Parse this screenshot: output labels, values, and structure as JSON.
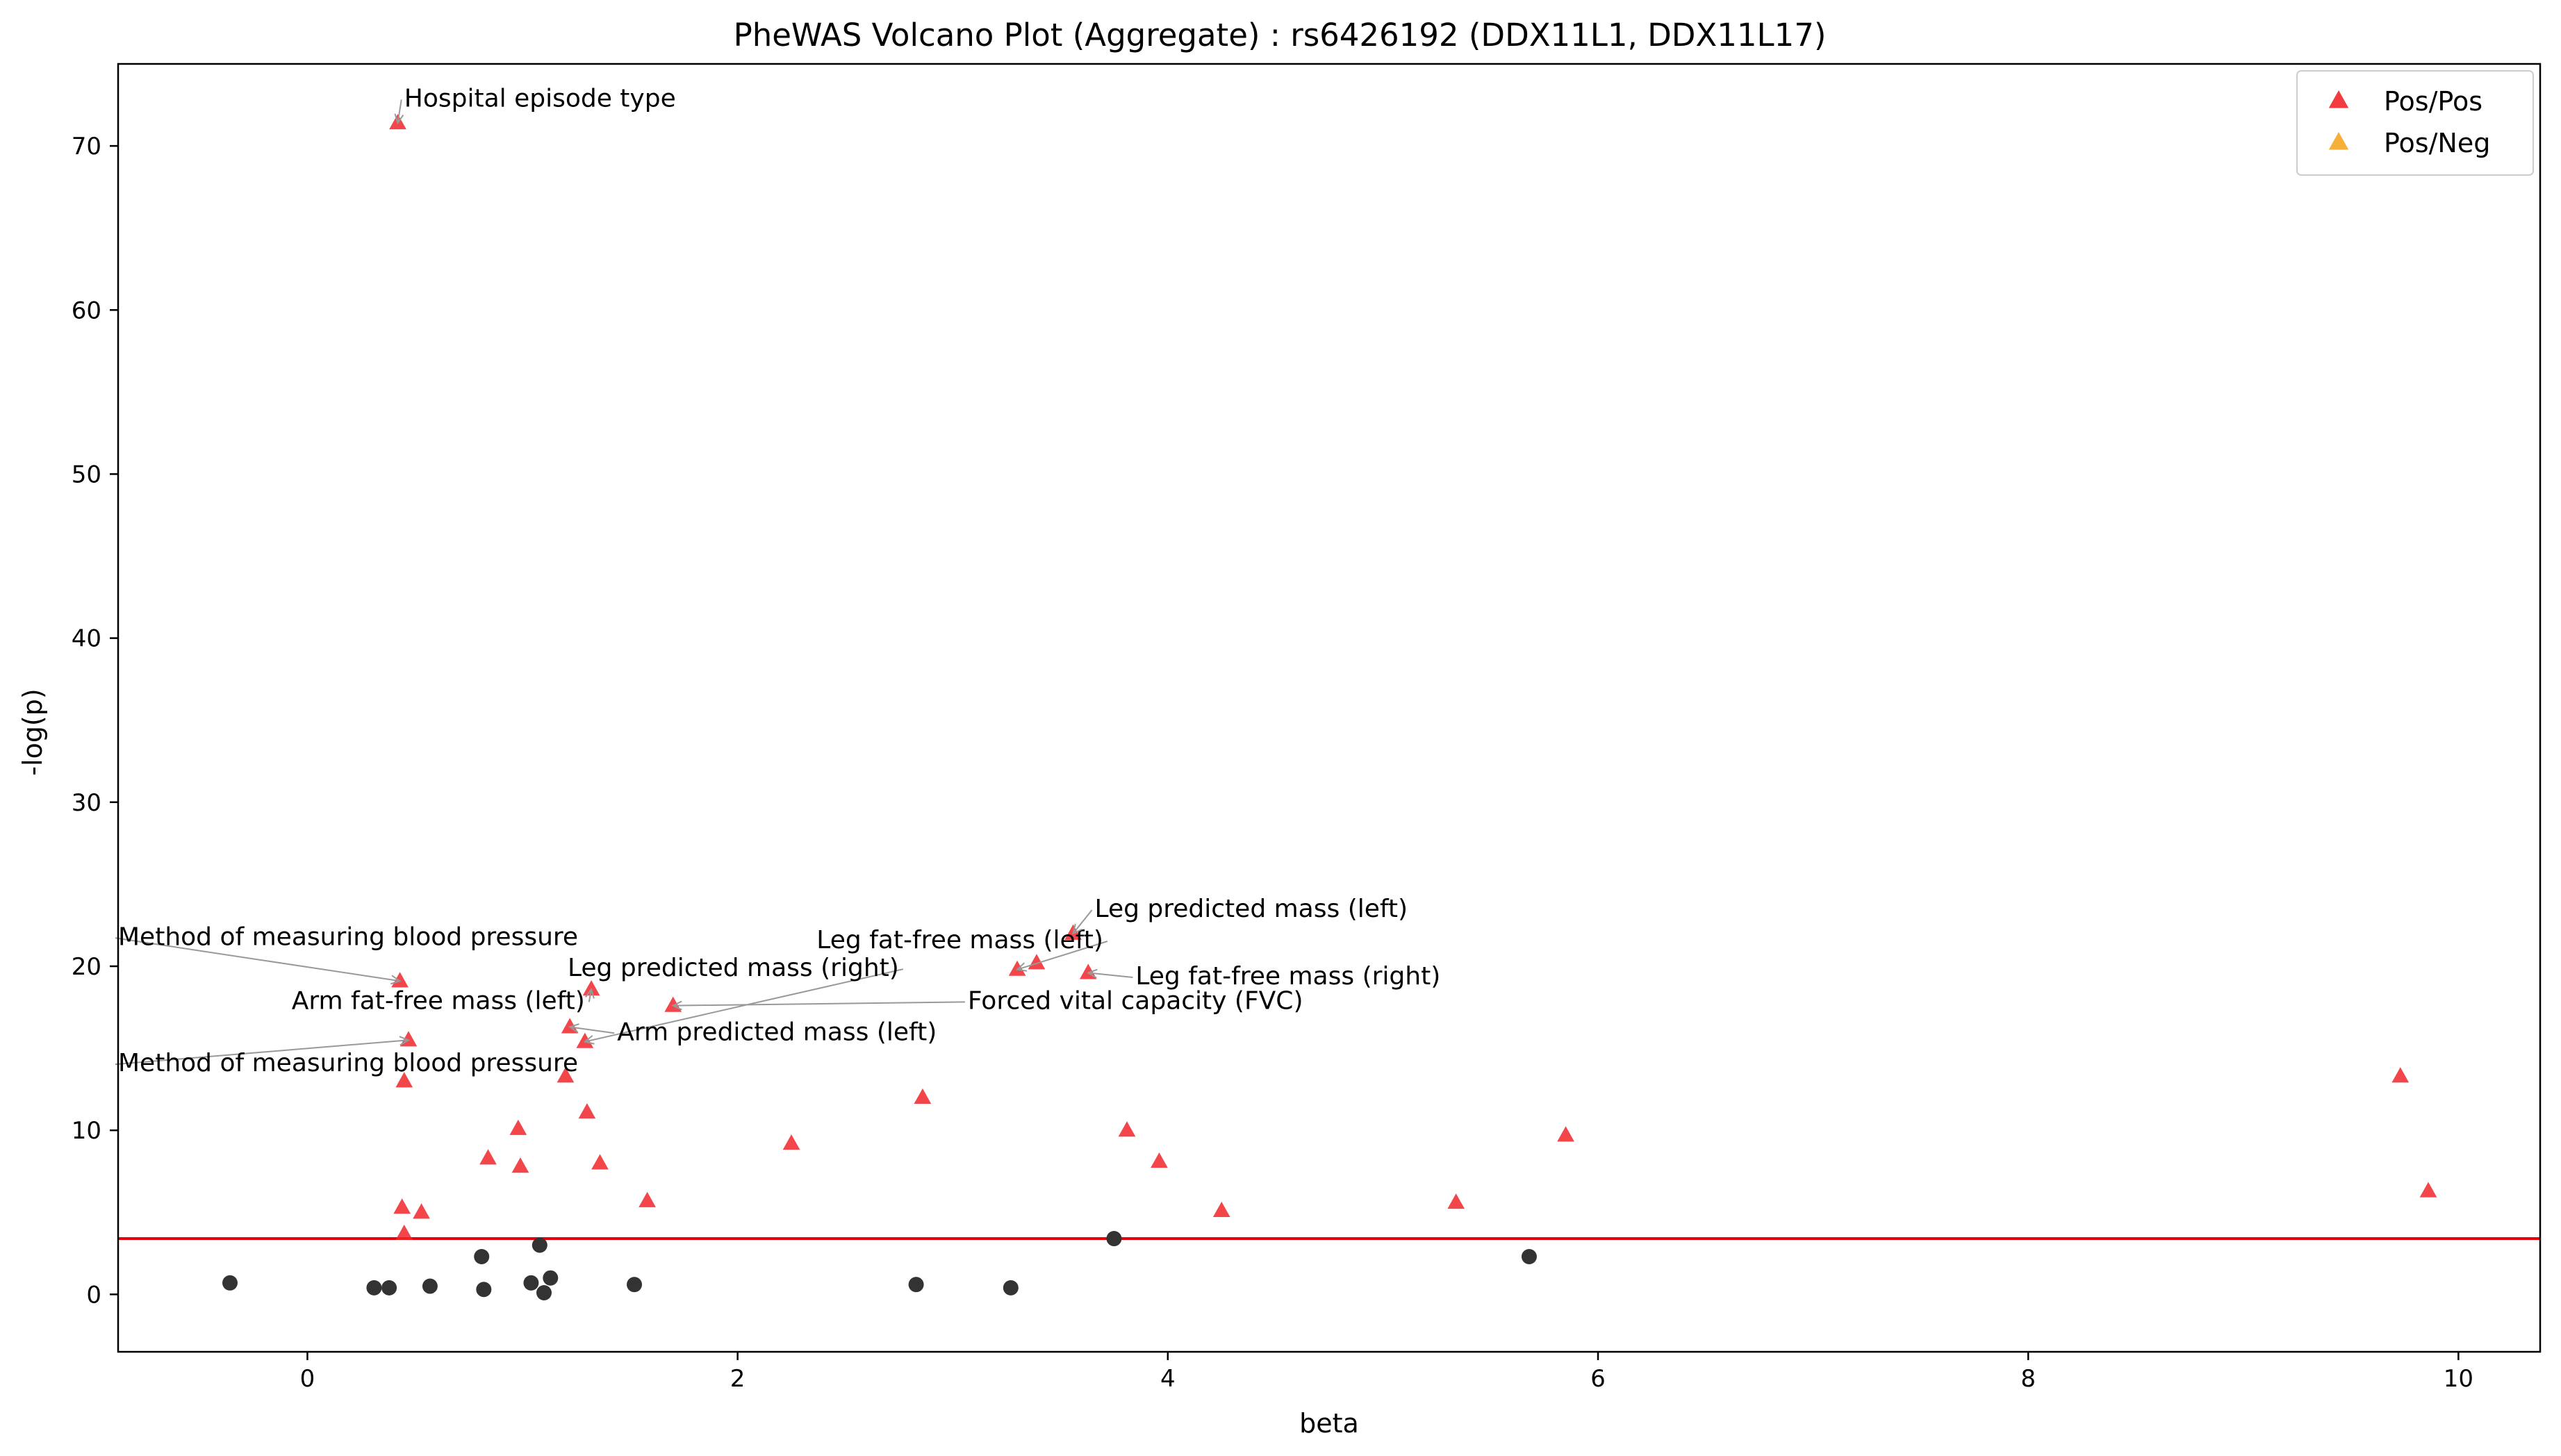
{
  "chart_data": {
    "type": "scatter",
    "title": "PheWAS Volcano Plot (Aggregate) : rs6426192 (DDX11L1, DDX11L17)",
    "xlabel": "beta",
    "ylabel": "-log(p)",
    "xlim": [
      -0.88,
      10.38
    ],
    "ylim": [
      -3.5,
      75.0
    ],
    "xticks": [
      0,
      2,
      4,
      6,
      8,
      10
    ],
    "yticks": [
      0,
      10,
      20,
      30,
      40,
      50,
      60,
      70
    ],
    "grid": false,
    "legend_position": "top-right",
    "threshold_line": {
      "y": 3.4,
      "color": "#e8000b"
    },
    "series": [
      {
        "name": "Pos/Pos",
        "marker": "triangle",
        "color": "#f0262a",
        "points": [
          {
            "x": 0.42,
            "y": 71.4
          },
          {
            "x": 0.43,
            "y": 19.1
          },
          {
            "x": 0.47,
            "y": 15.5
          },
          {
            "x": 0.45,
            "y": 13.0
          },
          {
            "x": 0.44,
            "y": 5.3
          },
          {
            "x": 0.45,
            "y": 3.7
          },
          {
            "x": 0.53,
            "y": 5.0
          },
          {
            "x": 0.84,
            "y": 8.3
          },
          {
            "x": 0.98,
            "y": 10.1
          },
          {
            "x": 0.99,
            "y": 7.8
          },
          {
            "x": 1.2,
            "y": 13.3
          },
          {
            "x": 1.22,
            "y": 16.3
          },
          {
            "x": 1.29,
            "y": 15.4
          },
          {
            "x": 1.3,
            "y": 11.1
          },
          {
            "x": 1.32,
            "y": 18.6
          },
          {
            "x": 1.36,
            "y": 8.0
          },
          {
            "x": 1.58,
            "y": 5.7
          },
          {
            "x": 1.7,
            "y": 17.6
          },
          {
            "x": 2.25,
            "y": 9.2
          },
          {
            "x": 2.86,
            "y": 12.0
          },
          {
            "x": 3.3,
            "y": 19.8
          },
          {
            "x": 3.39,
            "y": 20.2
          },
          {
            "x": 3.56,
            "y": 22.0
          },
          {
            "x": 3.63,
            "y": 19.6
          },
          {
            "x": 3.81,
            "y": 10.0
          },
          {
            "x": 3.96,
            "y": 8.1
          },
          {
            "x": 4.25,
            "y": 5.1
          },
          {
            "x": 5.34,
            "y": 5.6
          },
          {
            "x": 5.85,
            "y": 9.7
          },
          {
            "x": 9.73,
            "y": 13.3
          },
          {
            "x": 9.86,
            "y": 6.3
          }
        ]
      },
      {
        "name": "Pos/Neg",
        "marker": "triangle",
        "color": "#f5a623",
        "points": []
      },
      {
        "marker": "circle",
        "color": "#333333",
        "points": [
          {
            "x": -0.36,
            "y": 0.7
          },
          {
            "x": 0.31,
            "y": 0.4
          },
          {
            "x": 0.38,
            "y": 0.4
          },
          {
            "x": 0.57,
            "y": 0.5
          },
          {
            "x": 0.81,
            "y": 2.3
          },
          {
            "x": 0.82,
            "y": 0.3
          },
          {
            "x": 1.04,
            "y": 0.7
          },
          {
            "x": 1.08,
            "y": 3.0
          },
          {
            "x": 1.1,
            "y": 0.1
          },
          {
            "x": 1.13,
            "y": 1.0
          },
          {
            "x": 1.52,
            "y": 0.6
          },
          {
            "x": 2.83,
            "y": 0.6
          },
          {
            "x": 3.27,
            "y": 0.4
          },
          {
            "x": 3.75,
            "y": 3.4
          },
          {
            "x": 5.68,
            "y": 2.3
          }
        ]
      }
    ],
    "annotations": [
      {
        "text": "Hospital episode type",
        "point": [
          0.42,
          71.4
        ],
        "text_at": [
          0.45,
          72.4
        ],
        "align": "start"
      },
      {
        "text": "Method of measuring blood pressure",
        "point": [
          0.43,
          19.1
        ],
        "text_at": [
          -0.88,
          21.3
        ],
        "align": "start"
      },
      {
        "text": "Arm fat-free mass (left)",
        "point": [
          1.32,
          18.6
        ],
        "text_at": [
          1.29,
          17.4
        ],
        "align": "end"
      },
      {
        "text": "Method of measuring blood pressure",
        "point": [
          0.47,
          15.5
        ],
        "text_at": [
          -0.88,
          13.6
        ],
        "align": "start"
      },
      {
        "text": "Leg predicted mass (right)",
        "point": [
          1.29,
          15.4
        ],
        "text_at": [
          2.75,
          19.4
        ],
        "align": "end"
      },
      {
        "text": "Arm predicted mass (left)",
        "point": [
          1.22,
          16.3
        ],
        "text_at": [
          1.44,
          15.5
        ],
        "align": "start"
      },
      {
        "text": "Forced vital capacity (FVC)",
        "point": [
          1.7,
          17.6
        ],
        "text_at": [
          3.07,
          17.4
        ],
        "align": "start"
      },
      {
        "text": "Leg fat-free mass (left)",
        "point": [
          3.3,
          19.8
        ],
        "text_at": [
          3.7,
          21.1
        ],
        "align": "end"
      },
      {
        "text": "Leg predicted mass (left)",
        "point": [
          3.56,
          22.0
        ],
        "text_at": [
          3.66,
          23.0
        ],
        "align": "start"
      },
      {
        "text": "Leg fat-free mass (right)",
        "point": [
          3.63,
          19.6
        ],
        "text_at": [
          3.85,
          18.9
        ],
        "align": "start"
      }
    ]
  }
}
